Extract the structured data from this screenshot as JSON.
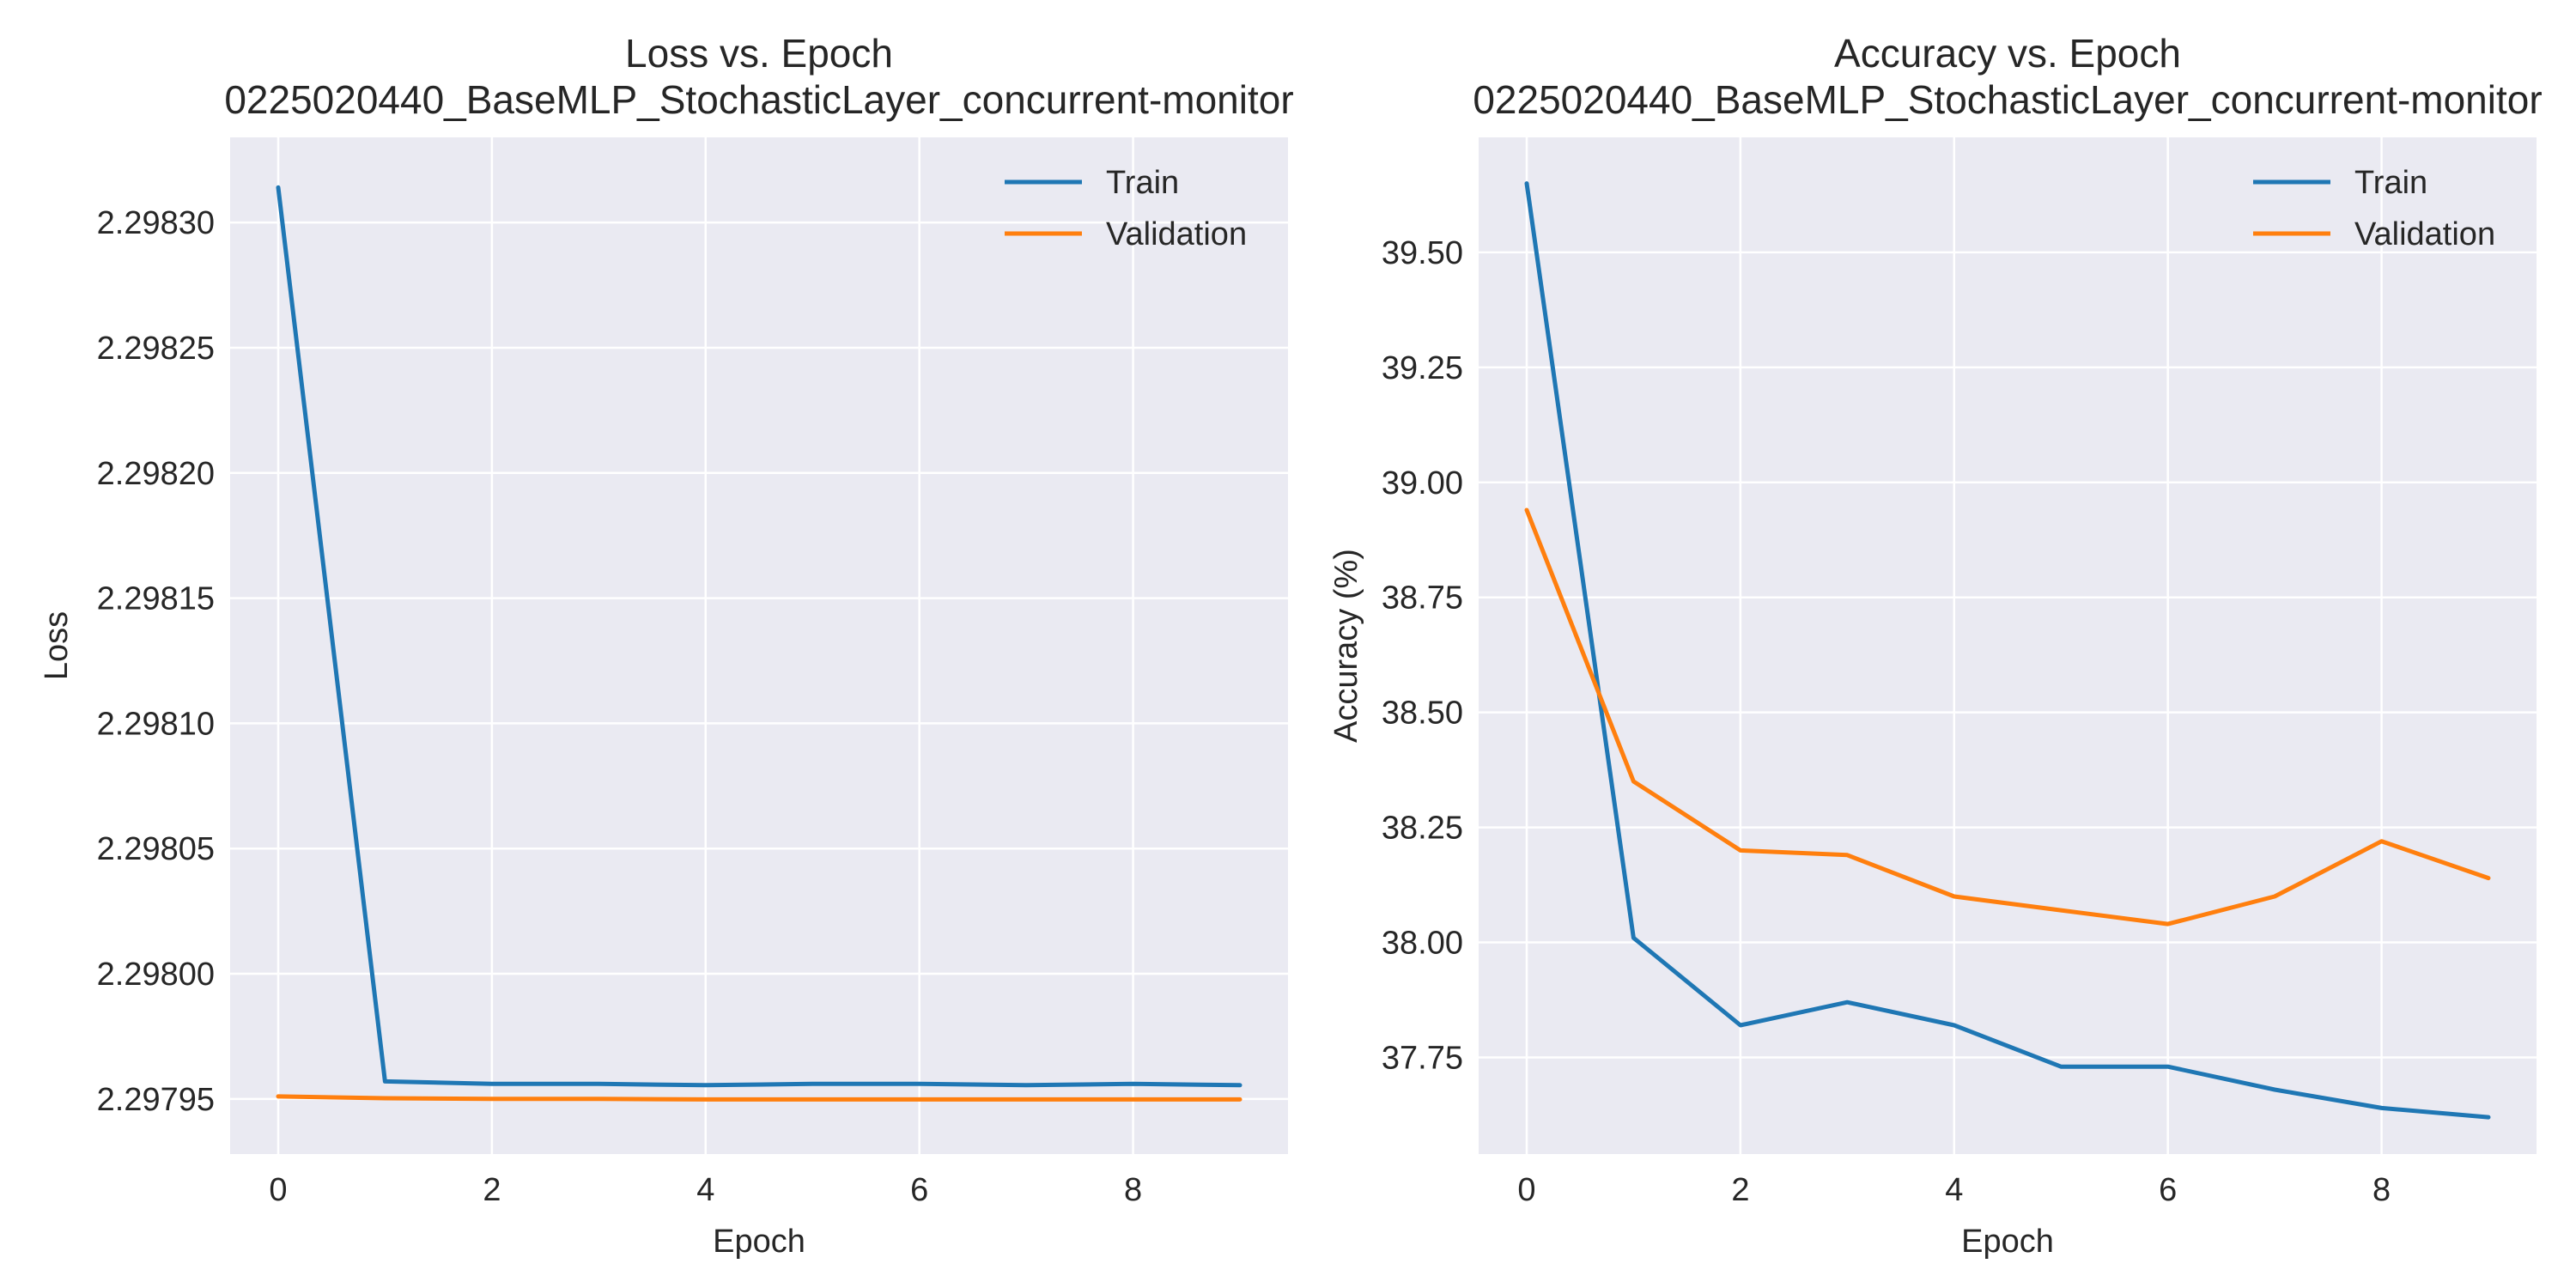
{
  "chart_data": [
    {
      "type": "line",
      "title": "Loss vs. Epoch\n0225020440_BaseMLP_StochasticLayer_concurrent-monitor",
      "xlabel": "Epoch",
      "ylabel": "Loss",
      "xlim": [
        -0.45,
        9.45
      ],
      "ylim": [
        2.297928,
        2.298334
      ],
      "xticks": [
        0,
        2,
        4,
        6,
        8
      ],
      "yticks": [
        2.29795,
        2.298,
        2.29805,
        2.2981,
        2.29815,
        2.2982,
        2.29825,
        2.2983
      ],
      "ytick_labels": [
        "2.29795",
        "2.29800",
        "2.29805",
        "2.29810",
        "2.29815",
        "2.29820",
        "2.29825",
        "2.29830"
      ],
      "grid": true,
      "legend": "top-right",
      "x": [
        0,
        1,
        2,
        3,
        4,
        5,
        6,
        7,
        8,
        9
      ],
      "series": [
        {
          "name": "Train",
          "color": "#1f77b4",
          "values": [
            2.298314,
            2.297957,
            2.297956,
            2.297956,
            2.2979555,
            2.297956,
            2.297956,
            2.2979555,
            2.297956,
            2.2979555
          ]
        },
        {
          "name": "Validation",
          "color": "#ff7f0e",
          "values": [
            2.297951,
            2.2979503,
            2.29795,
            2.29795,
            2.2979498,
            2.2979498,
            2.2979498,
            2.2979498,
            2.2979498,
            2.2979498
          ]
        }
      ]
    },
    {
      "type": "line",
      "title": "Accuracy vs. Epoch\n0225020440_BaseMLP_StochasticLayer_concurrent-monitor",
      "xlabel": "Epoch",
      "ylabel": "Accuracy (%)",
      "xlim": [
        -0.45,
        9.45
      ],
      "ylim": [
        37.54,
        39.75
      ],
      "xticks": [
        0,
        2,
        4,
        6,
        8
      ],
      "yticks": [
        37.75,
        38.0,
        38.25,
        38.5,
        38.75,
        39.0,
        39.25,
        39.5
      ],
      "ytick_labels": [
        "37.75",
        "38.00",
        "38.25",
        "38.50",
        "38.75",
        "39.00",
        "39.25",
        "39.50"
      ],
      "grid": true,
      "legend": "top-right",
      "x": [
        0,
        1,
        2,
        3,
        4,
        5,
        6,
        7,
        8,
        9
      ],
      "series": [
        {
          "name": "Train",
          "color": "#1f77b4",
          "values": [
            39.65,
            38.01,
            37.82,
            37.87,
            37.82,
            37.73,
            37.73,
            37.68,
            37.64,
            37.62
          ]
        },
        {
          "name": "Validation",
          "color": "#ff7f0e",
          "values": [
            38.94,
            38.35,
            38.2,
            38.19,
            38.1,
            38.07,
            38.04,
            38.1,
            38.22,
            38.14
          ]
        }
      ]
    }
  ]
}
